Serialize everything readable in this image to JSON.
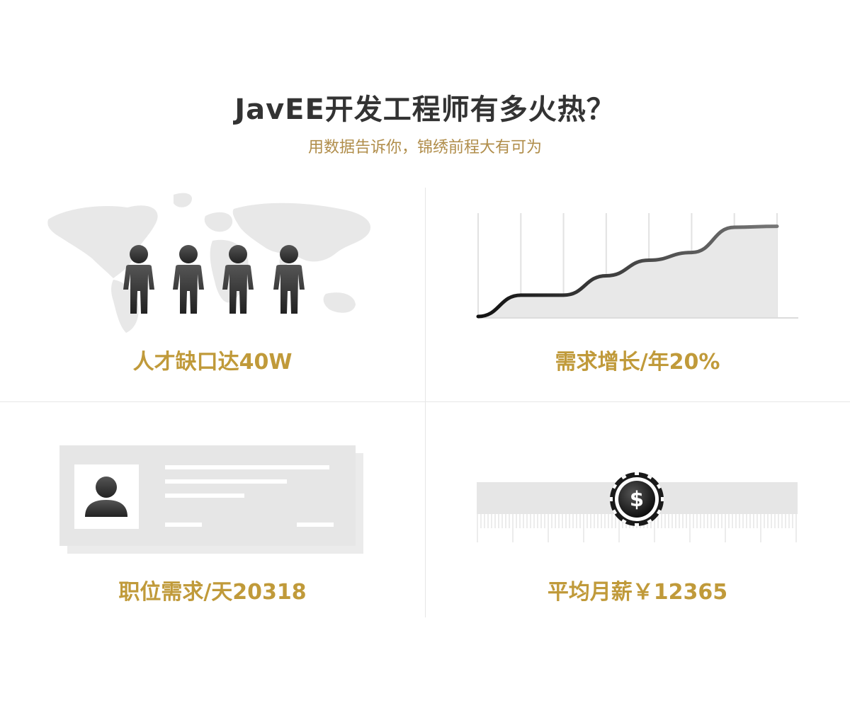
{
  "header": {
    "title": "JavEE开发工程师有多火热？",
    "subtitle": "用数据告诉你，锦绣前程大有可为"
  },
  "stats": {
    "talent_gap": "人才缺口达40W",
    "demand_growth": "需求增长/年20%",
    "daily_positions": "职位需求/天20318",
    "avg_salary": "平均月薪￥12365"
  },
  "chart_data": {
    "type": "line",
    "title": "",
    "xlabel": "",
    "ylabel": "",
    "grid": true,
    "legend": "none",
    "x": [
      0,
      1,
      2,
      3,
      4,
      5,
      6,
      7
    ],
    "values": [
      0.0,
      0.22,
      0.22,
      0.42,
      0.58,
      0.66,
      0.92,
      0.93
    ]
  },
  "colors": {
    "accent": "#c09a3a",
    "subtitle": "#b08d4a",
    "title": "#333333",
    "panel_gray": "#e6e6e6"
  },
  "icons": {
    "people": "person-icon",
    "map": "world-map-icon",
    "avatar": "avatar-icon",
    "coin": "dollar-coin-icon"
  }
}
